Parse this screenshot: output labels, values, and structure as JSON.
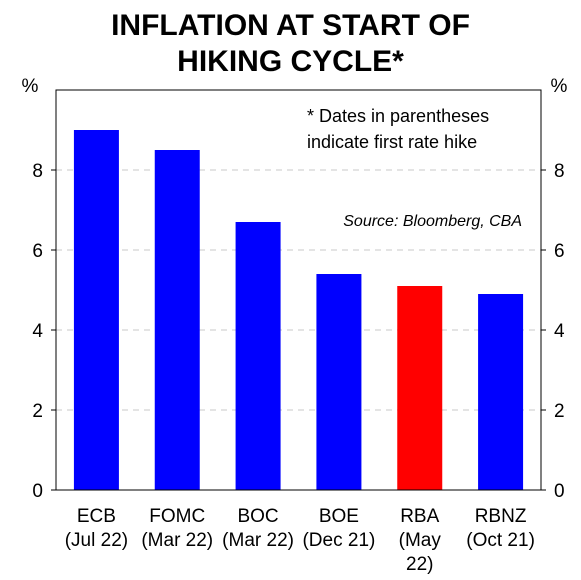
{
  "chart_data": {
    "type": "bar",
    "title_lines": [
      "INFLATION AT START OF",
      "HIKING CYCLE*"
    ],
    "unit_left": "%",
    "unit_right": "%",
    "categories": [
      {
        "line1": "ECB",
        "line2": "(Jul 22)",
        "line3": ""
      },
      {
        "line1": "FOMC",
        "line2": "(Mar 22)",
        "line3": ""
      },
      {
        "line1": "BOC",
        "line2": "(Mar 22)",
        "line3": ""
      },
      {
        "line1": "BOE",
        "line2": "(Dec 21)",
        "line3": ""
      },
      {
        "line1": "RBA",
        "line2": "(May",
        "line3": "22)"
      },
      {
        "line1": "RBNZ",
        "line2": "(Oct 21)",
        "line3": ""
      }
    ],
    "values": [
      9.0,
      8.5,
      6.7,
      5.4,
      5.1,
      4.9
    ],
    "colors": [
      "#0000ff",
      "#0000ff",
      "#0000ff",
      "#0000ff",
      "#ff0000",
      "#0000ff"
    ],
    "ylim": [
      0,
      10
    ],
    "yticks": [
      0,
      2,
      4,
      6,
      8
    ],
    "grid": "dashed",
    "note_lines": [
      "*  Dates in parentheses",
      "indicate first rate hike"
    ],
    "source": "Source: Bloomberg, CBA"
  }
}
